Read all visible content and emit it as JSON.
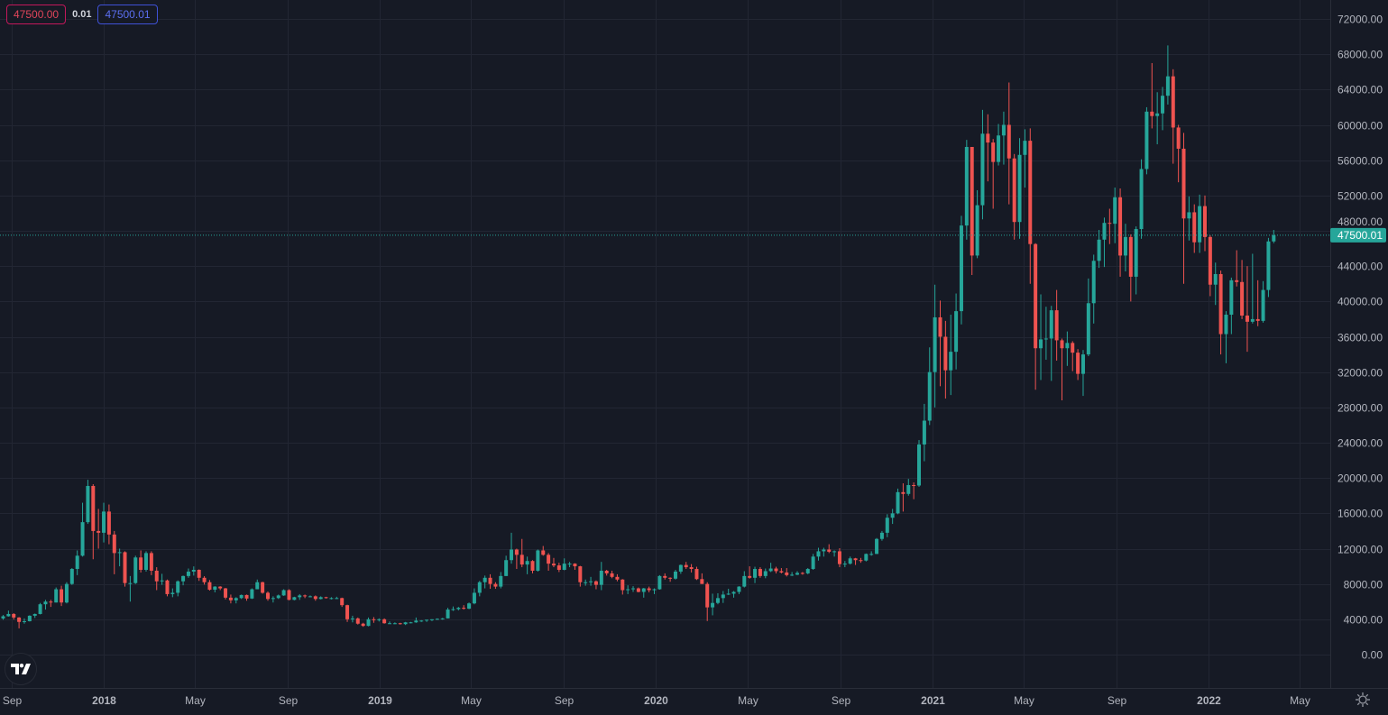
{
  "order_panel": {
    "sell_price": "47500.00",
    "spread": "0.01",
    "buy_price": "47500.01"
  },
  "colors": {
    "up": "#26a69a",
    "down": "#ef5350",
    "background": "#161a25",
    "grid": "#222633",
    "last_price": "#26a69a"
  },
  "icons": {
    "logo": "tradingview-logo-icon",
    "settings": "gear-icon"
  },
  "chart_data": {
    "type": "candlestick",
    "interval": "1W",
    "title": "",
    "xlabel": "",
    "ylabel": "",
    "ylim": [
      0,
      72000
    ],
    "grid": true,
    "y_ticks": [
      "0.00",
      "4000.00",
      "8000.00",
      "12000.00",
      "16000.00",
      "20000.00",
      "24000.00",
      "28000.00",
      "32000.00",
      "36000.00",
      "40000.00",
      "44000.00",
      "48000.00",
      "52000.00",
      "56000.00",
      "60000.00",
      "64000.00",
      "68000.00",
      "72000.00"
    ],
    "x_ticks": [
      {
        "label": "Sep",
        "date": "2017-09-01"
      },
      {
        "label": "2018",
        "date": "2018-01-01"
      },
      {
        "label": "May",
        "date": "2018-05-01"
      },
      {
        "label": "Sep",
        "date": "2018-09-01"
      },
      {
        "label": "2019",
        "date": "2019-01-01"
      },
      {
        "label": "May",
        "date": "2019-05-01"
      },
      {
        "label": "Sep",
        "date": "2019-09-01"
      },
      {
        "label": "2020",
        "date": "2020-01-01"
      },
      {
        "label": "May",
        "date": "2020-05-01"
      },
      {
        "label": "Sep",
        "date": "2020-09-01"
      },
      {
        "label": "2021",
        "date": "2021-01-01"
      },
      {
        "label": "May",
        "date": "2021-05-01"
      },
      {
        "label": "Sep",
        "date": "2021-09-01"
      },
      {
        "label": "2022",
        "date": "2022-01-01"
      },
      {
        "label": "May",
        "date": "2022-05-01"
      }
    ],
    "last_price": 47500.01,
    "last_price_label": "47500.01",
    "ohlc": [
      [
        4090,
        4480,
        3950,
        4340
      ],
      [
        4340,
        4980,
        4300,
        4600
      ],
      [
        4600,
        4700,
        3970,
        4200
      ],
      [
        4200,
        4250,
        2970,
        3700
      ],
      [
        3700,
        4100,
        3500,
        3780
      ],
      [
        3780,
        4450,
        3750,
        4400
      ],
      [
        4400,
        4650,
        4150,
        4600
      ],
      [
        4600,
        5850,
        4550,
        5700
      ],
      [
        5700,
        6200,
        5100,
        6000
      ],
      [
        6000,
        6200,
        5400,
        5900
      ],
      [
        5900,
        7600,
        5900,
        7400
      ],
      [
        7400,
        7800,
        5500,
        5900
      ],
      [
        5900,
        8200,
        5800,
        8000
      ],
      [
        8000,
        9800,
        7900,
        9700
      ],
      [
        9700,
        11800,
        9000,
        11200
      ],
      [
        11200,
        17200,
        11100,
        15000
      ],
      [
        15000,
        19800,
        14800,
        19100
      ],
      [
        19100,
        19300,
        10800,
        14000
      ],
      [
        14000,
        16500,
        12000,
        13800
      ],
      [
        13800,
        17200,
        12700,
        16200
      ],
      [
        16200,
        17000,
        12500,
        13600
      ],
      [
        13600,
        14000,
        9100,
        11500
      ],
      [
        11500,
        12000,
        10000,
        11600
      ],
      [
        11600,
        11700,
        7700,
        8100
      ],
      [
        8100,
        8900,
        6000,
        8100
      ],
      [
        8100,
        11200,
        8000,
        11000
      ],
      [
        11000,
        11800,
        9300,
        9600
      ],
      [
        9600,
        11700,
        9400,
        11500
      ],
      [
        11500,
        11700,
        9000,
        9500
      ],
      [
        9500,
        9900,
        7300,
        8300
      ],
      [
        8300,
        9150,
        7900,
        8400
      ],
      [
        8400,
        8500,
        6600,
        6850
      ],
      [
        6850,
        7500,
        6500,
        7000
      ],
      [
        7000,
        8400,
        6600,
        8300
      ],
      [
        8300,
        8950,
        7850,
        8900
      ],
      [
        8900,
        9750,
        8700,
        9400
      ],
      [
        9400,
        9990,
        8950,
        9600
      ],
      [
        9600,
        9650,
        8350,
        8700
      ],
      [
        8700,
        8880,
        7930,
        8200
      ],
      [
        8200,
        8450,
        7250,
        7350
      ],
      [
        7350,
        7750,
        7050,
        7700
      ],
      [
        7700,
        7750,
        7300,
        7500
      ],
      [
        7500,
        7550,
        6250,
        6450
      ],
      [
        6450,
        6800,
        5800,
        6150
      ],
      [
        6150,
        6500,
        5800,
        6400
      ],
      [
        6400,
        6800,
        6300,
        6750
      ],
      [
        6750,
        6800,
        6100,
        6350
      ],
      [
        6350,
        7500,
        6300,
        7400
      ],
      [
        7400,
        8500,
        7400,
        8200
      ],
      [
        8200,
        8250,
        6900,
        7000
      ],
      [
        7000,
        7150,
        6100,
        6300
      ],
      [
        6300,
        6600,
        5900,
        6400
      ],
      [
        6400,
        6800,
        6300,
        6700
      ],
      [
        6700,
        7400,
        6650,
        7300
      ],
      [
        7300,
        7400,
        6150,
        6200
      ],
      [
        6200,
        6550,
        6150,
        6500
      ],
      [
        6500,
        6850,
        6200,
        6700
      ],
      [
        6700,
        6800,
        6400,
        6600
      ],
      [
        6600,
        6700,
        6500,
        6600
      ],
      [
        6600,
        6700,
        6100,
        6300
      ],
      [
        6300,
        6600,
        6250,
        6500
      ],
      [
        6500,
        6550,
        6350,
        6400
      ],
      [
        6400,
        6500,
        6250,
        6400
      ],
      [
        6400,
        6550,
        6300,
        6400
      ],
      [
        6400,
        6450,
        5400,
        5600
      ],
      [
        5600,
        5650,
        3700,
        4000
      ],
      [
        4000,
        4400,
        3650,
        4100
      ],
      [
        4100,
        4200,
        3400,
        3500
      ],
      [
        3500,
        3600,
        3150,
        3250
      ],
      [
        3250,
        4200,
        3200,
        4000
      ],
      [
        4000,
        4250,
        3600,
        3900
      ],
      [
        3900,
        4100,
        3750,
        4000
      ],
      [
        4000,
        4100,
        3500,
        3550
      ],
      [
        3550,
        3750,
        3500,
        3550
      ],
      [
        3550,
        3650,
        3450,
        3550
      ],
      [
        3550,
        3600,
        3400,
        3450
      ],
      [
        3450,
        3700,
        3350,
        3650
      ],
      [
        3650,
        3700,
        3550,
        3650
      ],
      [
        3650,
        4200,
        3600,
        3850
      ],
      [
        3850,
        3900,
        3700,
        3850
      ],
      [
        3850,
        3950,
        3700,
        3950
      ],
      [
        3950,
        4000,
        3800,
        4000
      ],
      [
        4000,
        4100,
        3950,
        4050
      ],
      [
        4050,
        4150,
        3950,
        4100
      ],
      [
        4100,
        5300,
        4100,
        5100
      ],
      [
        5100,
        5450,
        4950,
        5150
      ],
      [
        5150,
        5400,
        5000,
        5300
      ],
      [
        5300,
        5600,
        5100,
        5200
      ],
      [
        5200,
        5900,
        5150,
        5800
      ],
      [
        5800,
        7500,
        5700,
        7000
      ],
      [
        7000,
        8350,
        6600,
        8200
      ],
      [
        8200,
        8950,
        7500,
        8700
      ],
      [
        8700,
        9100,
        7450,
        8000
      ],
      [
        8000,
        8200,
        7450,
        7700
      ],
      [
        7700,
        9350,
        7500,
        8900
      ],
      [
        8900,
        11200,
        8900,
        10700
      ],
      [
        10700,
        13800,
        10300,
        11900
      ],
      [
        11900,
        12000,
        9700,
        11300
      ],
      [
        11300,
        13100,
        9900,
        10200
      ],
      [
        10200,
        11100,
        9100,
        10600
      ],
      [
        10600,
        10700,
        9200,
        9500
      ],
      [
        9500,
        11900,
        9400,
        11800
      ],
      [
        11800,
        12300,
        11200,
        11300
      ],
      [
        11300,
        11500,
        9500,
        10300
      ],
      [
        10300,
        10950,
        9900,
        10100
      ],
      [
        10100,
        10400,
        9350,
        9600
      ],
      [
        9600,
        10900,
        9550,
        10300
      ],
      [
        10300,
        10500,
        9900,
        10300
      ],
      [
        10300,
        10350,
        9600,
        10000
      ],
      [
        10000,
        10050,
        7700,
        8200
      ],
      [
        8200,
        8500,
        7800,
        8200
      ],
      [
        8200,
        8800,
        7800,
        8300
      ],
      [
        8300,
        8400,
        7400,
        7900
      ],
      [
        7900,
        10500,
        7300,
        9500
      ],
      [
        9500,
        9600,
        8950,
        9200
      ],
      [
        9200,
        9500,
        8650,
        8800
      ],
      [
        8800,
        9100,
        8300,
        8500
      ],
      [
        8500,
        8550,
        6800,
        7300
      ],
      [
        7300,
        7850,
        6850,
        7400
      ],
      [
        7400,
        7750,
        7100,
        7500
      ],
      [
        7500,
        7600,
        7050,
        7100
      ],
      [
        7100,
        7550,
        6450,
        7500
      ],
      [
        7500,
        7700,
        7050,
        7300
      ],
      [
        7300,
        7500,
        6850,
        7400
      ],
      [
        7400,
        9000,
        7350,
        8900
      ],
      [
        8900,
        9200,
        8500,
        8700
      ],
      [
        8700,
        8750,
        8250,
        8600
      ],
      [
        8600,
        9600,
        8500,
        9400
      ],
      [
        9400,
        10200,
        9150,
        10150
      ],
      [
        10150,
        10500,
        9700,
        9900
      ],
      [
        9900,
        10250,
        9300,
        9700
      ],
      [
        9700,
        9950,
        8450,
        8550
      ],
      [
        8550,
        9200,
        8000,
        8000
      ],
      [
        8000,
        8200,
        3800,
        5350
      ],
      [
        5350,
        6900,
        4450,
        5850
      ],
      [
        5850,
        6950,
        5700,
        6400
      ],
      [
        6400,
        7200,
        5850,
        6800
      ],
      [
        6800,
        7450,
        6750,
        6900
      ],
      [
        6900,
        7200,
        6450,
        7100
      ],
      [
        7100,
        7750,
        6850,
        7700
      ],
      [
        7700,
        9450,
        7600,
        8900
      ],
      [
        8900,
        10000,
        8600,
        8700
      ],
      [
        8700,
        9950,
        8100,
        9700
      ],
      [
        9700,
        9900,
        8700,
        8900
      ],
      [
        8900,
        9750,
        8650,
        9450
      ],
      [
        9450,
        10400,
        9350,
        9750
      ],
      [
        9750,
        9950,
        9200,
        9450
      ],
      [
        9450,
        9800,
        9200,
        9300
      ],
      [
        9300,
        9800,
        8850,
        9000
      ],
      [
        9000,
        9350,
        8900,
        9050
      ],
      [
        9050,
        9450,
        9000,
        9250
      ],
      [
        9250,
        9350,
        9050,
        9200
      ],
      [
        9200,
        9800,
        9100,
        9700
      ],
      [
        9700,
        11400,
        9600,
        11100
      ],
      [
        11100,
        12100,
        10650,
        11700
      ],
      [
        11700,
        12100,
        11100,
        11900
      ],
      [
        11900,
        12500,
        11500,
        11650
      ],
      [
        11650,
        11800,
        11100,
        11700
      ],
      [
        11700,
        12050,
        9900,
        10250
      ],
      [
        10250,
        10600,
        9900,
        10300
      ],
      [
        10300,
        11100,
        10200,
        10900
      ],
      [
        10900,
        10950,
        10150,
        10700
      ],
      [
        10700,
        10950,
        10400,
        10650
      ],
      [
        10650,
        11450,
        10550,
        11400
      ],
      [
        11400,
        11700,
        11200,
        11400
      ],
      [
        11400,
        13200,
        11400,
        13100
      ],
      [
        13100,
        14000,
        12900,
        13800
      ],
      [
        13800,
        15900,
        13300,
        15500
      ],
      [
        15500,
        16500,
        14800,
        16000
      ],
      [
        16000,
        18800,
        15900,
        18400
      ],
      [
        18400,
        19400,
        16200,
        18200
      ],
      [
        18200,
        19900,
        18000,
        19200
      ],
      [
        19200,
        19500,
        17600,
        19150
      ],
      [
        19150,
        24300,
        19000,
        23800
      ],
      [
        23800,
        28400,
        21900,
        26500
      ],
      [
        26500,
        34800,
        26000,
        32000
      ],
      [
        32000,
        41900,
        28000,
        38200
      ],
      [
        38200,
        40100,
        30400,
        36000
      ],
      [
        36000,
        37800,
        29000,
        32200
      ],
      [
        32200,
        38500,
        29400,
        34300
      ],
      [
        34300,
        40900,
        32300,
        38900
      ],
      [
        38900,
        49700,
        37400,
        48600
      ],
      [
        48600,
        58300,
        47000,
        57500
      ],
      [
        57500,
        57500,
        43000,
        45200
      ],
      [
        45200,
        52600,
        44900,
        50900
      ],
      [
        50900,
        61700,
        49300,
        59000
      ],
      [
        59000,
        61200,
        53600,
        58000
      ],
      [
        58000,
        58400,
        50500,
        55800
      ],
      [
        55800,
        60100,
        55400,
        58800
      ],
      [
        58800,
        61500,
        55500,
        60000
      ],
      [
        60000,
        64800,
        51000,
        56200
      ],
      [
        56200,
        56700,
        47000,
        49000
      ],
      [
        49000,
        58500,
        47100,
        56600
      ],
      [
        56600,
        59500,
        52900,
        58200
      ],
      [
        58200,
        59600,
        42000,
        46500
      ],
      [
        46500,
        46600,
        30000,
        34700
      ],
      [
        34700,
        40800,
        31100,
        35700
      ],
      [
        35700,
        39400,
        33400,
        35800
      ],
      [
        35800,
        39500,
        31000,
        39000
      ],
      [
        39000,
        41300,
        33300,
        35600
      ],
      [
        35600,
        35800,
        28800,
        34700
      ],
      [
        34700,
        36600,
        32700,
        35300
      ],
      [
        35300,
        35500,
        32100,
        34200
      ],
      [
        34200,
        34600,
        31100,
        31800
      ],
      [
        31800,
        34500,
        29300,
        34000
      ],
      [
        34000,
        42600,
        33800,
        39800
      ],
      [
        39800,
        45300,
        37500,
        44600
      ],
      [
        44600,
        48100,
        43800,
        47000
      ],
      [
        47000,
        49500,
        43900,
        48900
      ],
      [
        48900,
        50500,
        46500,
        48800
      ],
      [
        48800,
        52900,
        46600,
        51800
      ],
      [
        51800,
        52800,
        42800,
        45200
      ],
      [
        45200,
        48800,
        43400,
        47300
      ],
      [
        47300,
        47600,
        40000,
        42800
      ],
      [
        42800,
        48500,
        40800,
        48200
      ],
      [
        48200,
        56100,
        47100,
        55000
      ],
      [
        55000,
        62000,
        54400,
        61500
      ],
      [
        61500,
        67000,
        59600,
        61000
      ],
      [
        61000,
        63700,
        57800,
        61300
      ],
      [
        61300,
        64300,
        59400,
        63300
      ],
      [
        63300,
        69000,
        62300,
        65500
      ],
      [
        65500,
        66300,
        55600,
        59700
      ],
      [
        59700,
        60000,
        53500,
        57300
      ],
      [
        57300,
        59100,
        42000,
        49400
      ],
      [
        49400,
        51900,
        46900,
        50100
      ],
      [
        50100,
        51000,
        45500,
        46700
      ],
      [
        46700,
        52100,
        45500,
        50800
      ],
      [
        50800,
        52000,
        45700,
        47300
      ],
      [
        47300,
        47500,
        40600,
        41900
      ],
      [
        41900,
        44400,
        39600,
        43100
      ],
      [
        43100,
        43500,
        34000,
        36300
      ],
      [
        36300,
        38900,
        33000,
        38500
      ],
      [
        38500,
        42700,
        36300,
        42400
      ],
      [
        42400,
        45800,
        41700,
        42200
      ],
      [
        42200,
        44700,
        38000,
        38400
      ],
      [
        38400,
        44000,
        34300,
        37700
      ],
      [
        37700,
        45400,
        37500,
        38000
      ],
      [
        38000,
        42400,
        37200,
        37800
      ],
      [
        37800,
        42300,
        37600,
        41300
      ],
      [
        41300,
        47200,
        40500,
        46800
      ],
      [
        46800,
        48100,
        46600,
        47500.01
      ]
    ]
  }
}
